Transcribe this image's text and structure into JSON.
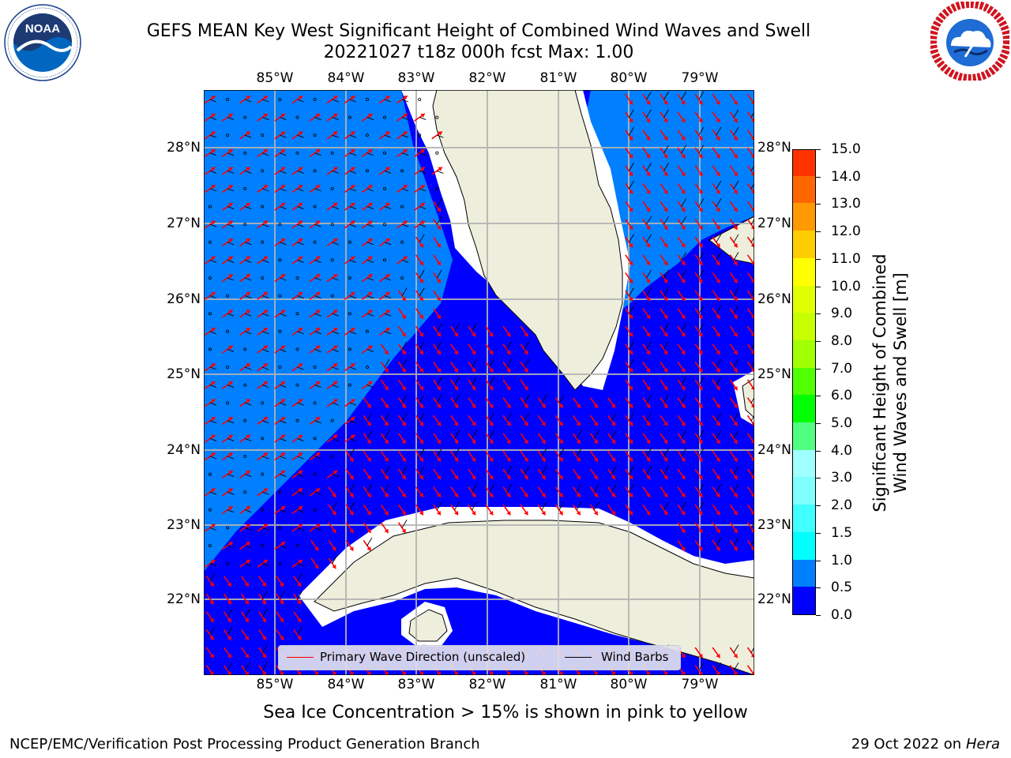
{
  "title": {
    "line1": "GEFS MEAN Key West Significant Height of Combined Wind Waves and Swell",
    "line2": "20221027 t18z 000h fcst    Max: 1.00"
  },
  "logos": {
    "left": {
      "text": "NOAA",
      "ring_text": "NATIONAL OCEANIC AND ATMOSPHERIC ADMINISTRATION · U.S. DEPARTMENT OF COMMERCE"
    },
    "right": {
      "ring_text": "NATIONAL WEATHER SERVICE"
    }
  },
  "map": {
    "lon_labels": [
      "85°W",
      "84°W",
      "83°W",
      "82°W",
      "81°W",
      "80°W",
      "79°W"
    ],
    "lat_labels": [
      "28°N",
      "27°N",
      "26°N",
      "25°N",
      "24°N",
      "23°N",
      "22°N"
    ],
    "colors": {
      "wave_0_05": "#0000ff",
      "wave_05_1": "#0080ff",
      "land": "#eeeedc",
      "coast": "#ffffff",
      "grid": "#b3b3b3",
      "arrow": "#ff0000",
      "barb": "#000000"
    }
  },
  "legend": {
    "primary_wave": "Primary Wave Direction (unscaled)",
    "wind_barbs": "Wind Barbs"
  },
  "colorbar": {
    "title_line1": "Significant Height of Combined",
    "title_line2": "Wind Waves and Swell [m]",
    "ticks": [
      "0.0",
      "0.5",
      "1.0",
      "1.5",
      "2.0",
      "3.0",
      "4.0",
      "5.0",
      "6.0",
      "7.0",
      "8.0",
      "9.0",
      "10.0",
      "11.0",
      "12.0",
      "13.0",
      "14.0",
      "15.0"
    ],
    "colors": [
      "#0000ff",
      "#0080ff",
      "#00ffff",
      "#40ffff",
      "#80ffff",
      "#a0ffff",
      "#50ff80",
      "#00ff00",
      "#50ff00",
      "#a0ff00",
      "#c8ff00",
      "#e0ff00",
      "#ffff00",
      "#ffcc00",
      "#ff9900",
      "#ff6600",
      "#ff3300",
      "#ff0000"
    ]
  },
  "footer": {
    "note": "Sea Ice Concentration > 15% is shown in pink to yellow",
    "left": "NCEP/EMC/Verification Post Processing Product Generation Branch",
    "right_prefix": "29 Oct 2022 on ",
    "right_host": "Hera"
  }
}
